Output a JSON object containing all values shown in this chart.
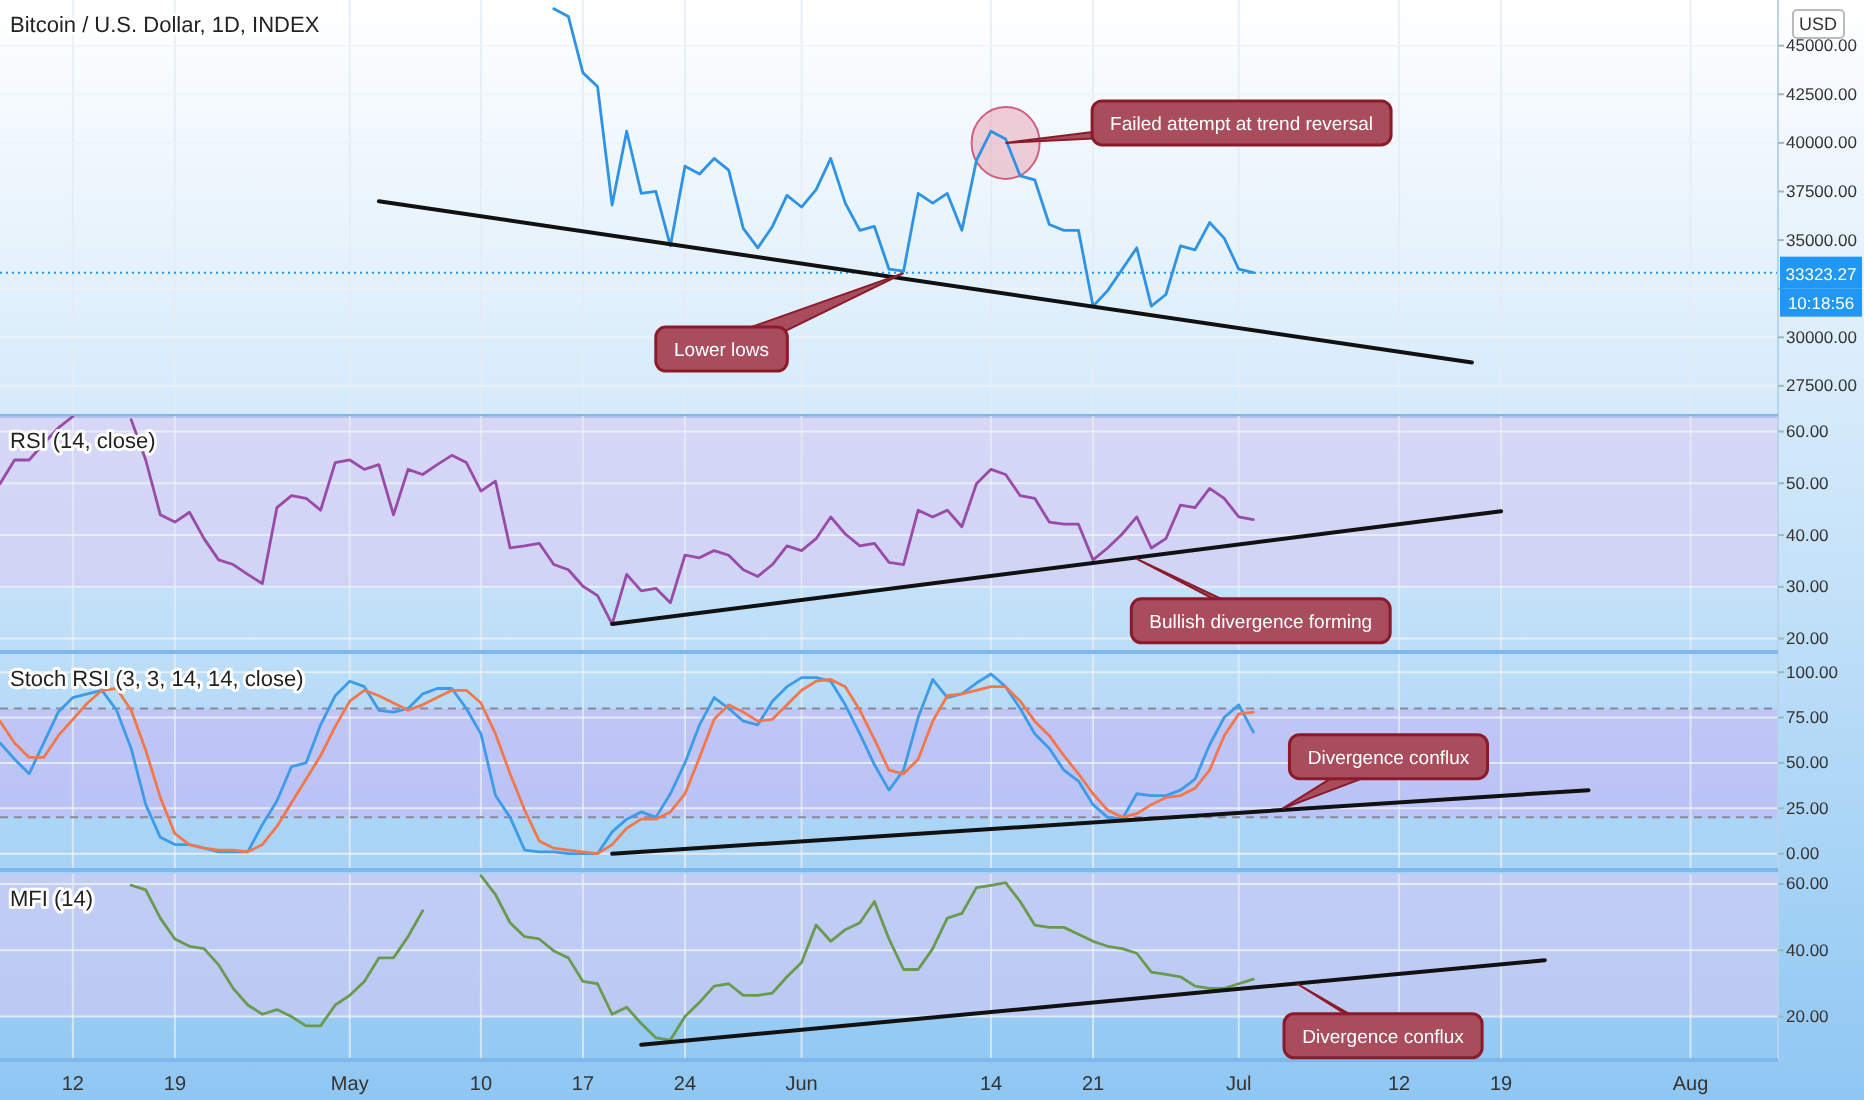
{
  "chart_data": [
    {
      "type": "line",
      "title": "Bitcoin / U.S. Dollar, 1D, INDEX",
      "ylabel": "USD",
      "grid": true,
      "tick_labels": "y",
      "xlim": [
        "--04-07",
        "--08-07"
      ],
      "ylim": [
        25950,
        47350
      ],
      "yticks": [
        {
          "value": 27500,
          "label": "27500.00"
        },
        {
          "value": 30000,
          "label": "30000.00"
        },
        {
          "value": 32500,
          "label": null
        },
        {
          "value": 35000,
          "label": "35000.00"
        },
        {
          "value": 37500,
          "label": "37500.00"
        },
        {
          "value": 40000,
          "label": "40000.00"
        },
        {
          "value": 42500,
          "label": "42500.00"
        },
        {
          "value": 45000,
          "label": "45000.00"
        }
      ],
      "x": [
        "--05-15",
        "--05-16",
        "--05-17",
        "--05-18",
        "--05-19",
        "--05-20",
        "--05-21",
        "--05-22",
        "--05-23",
        "--05-24",
        "--05-25",
        "--05-26",
        "--05-27",
        "--05-28",
        "--05-29",
        "--05-30",
        "--05-31",
        "--06-01",
        "--06-02",
        "--06-03",
        "--06-04",
        "--06-05",
        "--06-06",
        "--06-07",
        "--06-08",
        "--06-09",
        "--06-10",
        "--06-11",
        "--06-12",
        "--06-13",
        "--06-14",
        "--06-15",
        "--06-16",
        "--06-17",
        "--06-18",
        "--06-19",
        "--06-20",
        "--06-21",
        "--06-22",
        "--06-23",
        "--06-24",
        "--06-25",
        "--06-26",
        "--06-27",
        "--06-28",
        "--06-29",
        "--06-30",
        "--07-01",
        "--07-02"
      ],
      "series": [
        {
          "color": "#2e93e6",
          "values": [
            46900,
            46500,
            43600,
            42900,
            36800,
            40600,
            37400,
            37500,
            34700,
            38800,
            38400,
            39200,
            38600,
            35600,
            34600,
            35700,
            37300,
            36700,
            37600,
            39200,
            36900,
            35500,
            35700,
            33500,
            33400,
            37400,
            36900,
            37400,
            35500,
            39100,
            40600,
            40200,
            38300,
            38100,
            35800,
            35500,
            35500,
            31600,
            32400,
            33500,
            34600,
            31600,
            32200,
            34700,
            34500,
            35900,
            35100,
            33500,
            33323.27
          ]
        },
        {
          "color": "#111111",
          "x": [
            "--05-03",
            "--07-17"
          ],
          "values": [
            37000,
            28700
          ]
        }
      ],
      "ref_lines": [
        {
          "axis": "y",
          "value": 33323.27,
          "label": "33323.27",
          "color": "#2196f3",
          "line_style": "dotted"
        }
      ],
      "annotations": [
        {
          "text": "Lower lows",
          "x": "--06-08",
          "y": 33300
        },
        {
          "text": "Failed attempt at trend reversal",
          "x": "--06-15",
          "y": 40000
        },
        "10:18:56"
      ]
    },
    {
      "type": "line",
      "title": "RSI (14, close)",
      "grid": true,
      "tick_labels": "y",
      "xlim": [
        "--04-07",
        "--08-07"
      ],
      "ylim": [
        17.4,
        63
      ],
      "yticks": [
        {
          "value": 20,
          "label": "20.00"
        },
        {
          "value": 30,
          "label": "30.00"
        },
        {
          "value": 40,
          "label": "40.00"
        },
        {
          "value": 50,
          "label": "50.00"
        },
        {
          "value": 60,
          "label": "60.00"
        }
      ],
      "x": [
        "--04-07",
        "--04-08",
        "--04-09",
        "--04-10",
        "--04-11",
        "--04-12",
        "--04-13",
        "--04-14",
        "--04-15",
        "--04-16",
        "--04-17",
        "--04-18",
        "--04-19",
        "--04-20",
        "--04-21",
        "--04-22",
        "--04-23",
        "--04-24",
        "--04-25",
        "--04-26",
        "--04-27",
        "--04-28",
        "--04-29",
        "--04-30",
        "--05-01",
        "--05-02",
        "--05-03",
        "--05-04",
        "--05-05",
        "--05-06",
        "--05-07",
        "--05-08",
        "--05-09",
        "--05-10",
        "--05-11",
        "--05-12",
        "--05-13",
        "--05-14",
        "--05-15",
        "--05-16",
        "--05-17",
        "--05-18",
        "--05-19",
        "--05-20",
        "--05-21",
        "--05-22",
        "--05-23",
        "--05-24",
        "--05-25",
        "--05-26",
        "--05-27",
        "--05-28",
        "--05-29",
        "--05-30",
        "--05-31",
        "--06-01",
        "--06-02",
        "--06-03",
        "--06-04",
        "--06-05",
        "--06-06",
        "--06-07",
        "--06-08",
        "--06-09",
        "--06-10",
        "--06-11",
        "--06-12",
        "--06-13",
        "--06-14",
        "--06-15",
        "--06-16",
        "--06-17",
        "--06-18",
        "--06-19",
        "--06-20",
        "--06-21",
        "--06-22",
        "--06-23",
        "--06-24",
        "--06-25",
        "--06-26",
        "--06-27",
        "--06-28",
        "--06-29",
        "--06-30",
        "--07-01",
        "--07-02"
      ],
      "series": [
        {
          "color": "#9a4aa8",
          "values": [
            49.9,
            54.5,
            54.5,
            57.7,
            60.7,
            62.9,
            null,
            null,
            null,
            62.3,
            54.5,
            43.9,
            42.5,
            44.4,
            39.3,
            35.2,
            34.3,
            32.4,
            30.6,
            45.3,
            47.6,
            47.1,
            44.8,
            54.0,
            54.5,
            52.7,
            53.6,
            43.9,
            52.7,
            51.7,
            53.6,
            55.4,
            54.0,
            48.5,
            50.4,
            37.5,
            37.9,
            38.4,
            34.3,
            33.3,
            30.1,
            28.3,
            22.8,
            32.4,
            29.2,
            29.7,
            26.9,
            36.1,
            35.6,
            37.0,
            36.1,
            33.3,
            32.0,
            34.3,
            37.9,
            37.0,
            39.3,
            43.5,
            40.2,
            37.9,
            38.4,
            34.7,
            34.3,
            44.8,
            43.5,
            44.8,
            41.6,
            49.9,
            52.7,
            51.7,
            47.6,
            47.1,
            42.5,
            42.1,
            42.1,
            35.2,
            37.5,
            40.2,
            43.5,
            37.5,
            39.3,
            45.8,
            45.3,
            49.0,
            47.1,
            43.5,
            43.0
          ]
        },
        {
          "color": "#111111",
          "x": [
            "--05-19",
            "--07-19"
          ],
          "values": [
            22.8,
            44.6
          ]
        }
      ],
      "bands": [
        {
          "axis": "y",
          "from": 30,
          "to": 63,
          "color": "#d9c8f2"
        }
      ],
      "annotations": [
        {
          "text": "Bullish divergence forming",
          "x": "--06-24",
          "y": 35.4
        }
      ]
    },
    {
      "type": "line",
      "title": "Stoch RSI (3, 3, 14, 14, close)",
      "grid": true,
      "tick_labels": "y",
      "xlim": [
        "--04-07",
        "--08-07"
      ],
      "ylim": [
        -9,
        110
      ],
      "yticks": [
        {
          "value": 0,
          "label": "0.00"
        },
        {
          "value": 25,
          "label": "25.00"
        },
        {
          "value": 50,
          "label": "50.00"
        },
        {
          "value": 75,
          "label": "75.00"
        },
        {
          "value": 100,
          "label": "100.00"
        }
      ],
      "x": [
        "--04-07",
        "--04-08",
        "--04-09",
        "--04-10",
        "--04-11",
        "--04-12",
        "--04-13",
        "--04-14",
        "--04-15",
        "--04-16",
        "--04-17",
        "--04-18",
        "--04-19",
        "--04-20",
        "--04-21",
        "--04-22",
        "--04-23",
        "--04-24",
        "--04-25",
        "--04-26",
        "--04-27",
        "--04-28",
        "--04-29",
        "--04-30",
        "--05-01",
        "--05-02",
        "--05-03",
        "--05-04",
        "--05-05",
        "--05-06",
        "--05-07",
        "--05-08",
        "--05-09",
        "--05-10",
        "--05-11",
        "--05-12",
        "--05-13",
        "--05-14",
        "--05-15",
        "--05-16",
        "--05-17",
        "--05-18",
        "--05-19",
        "--05-20",
        "--05-21",
        "--05-22",
        "--05-23",
        "--05-24",
        "--05-25",
        "--05-26",
        "--05-27",
        "--05-28",
        "--05-29",
        "--05-30",
        "--05-31",
        "--06-01",
        "--06-02",
        "--06-03",
        "--06-04",
        "--06-05",
        "--06-06",
        "--06-07",
        "--06-08",
        "--06-09",
        "--06-10",
        "--06-11",
        "--06-12",
        "--06-13",
        "--06-14",
        "--06-15",
        "--06-16",
        "--06-17",
        "--06-18",
        "--06-19",
        "--06-20",
        "--06-21",
        "--06-22",
        "--06-23",
        "--06-24",
        "--06-25",
        "--06-26",
        "--06-27",
        "--06-28",
        "--06-29",
        "--06-30",
        "--07-01",
        "--07-02"
      ],
      "series": [
        {
          "color": "#3d9be9",
          "values": [
            61,
            52,
            44,
            61,
            78,
            86,
            88,
            90,
            79,
            58,
            27,
            9,
            5,
            5,
            3,
            1,
            1,
            1,
            16,
            29,
            48,
            50,
            71,
            87,
            95,
            92,
            79,
            78,
            80,
            88,
            91,
            91,
            80,
            66,
            32,
            20,
            2,
            1,
            1,
            0,
            0,
            0,
            12,
            19,
            23,
            20,
            33,
            50,
            71,
            86,
            80,
            73,
            71,
            84,
            92,
            97,
            97,
            95,
            82,
            66,
            49,
            35,
            46,
            75,
            96,
            86,
            88,
            94,
            99,
            92,
            80,
            66,
            58,
            46,
            40,
            27,
            20,
            19,
            33,
            32,
            32,
            35,
            41,
            60,
            75,
            82,
            67
          ]
        },
        {
          "color": "#f2784b",
          "values": [
            73,
            61,
            53,
            53,
            65,
            74,
            83,
            90,
            91,
            79,
            57,
            31,
            11,
            5,
            3,
            2,
            2,
            1,
            5,
            15,
            28,
            41,
            54,
            70,
            84,
            90,
            87,
            83,
            79,
            82,
            86,
            90,
            90,
            83,
            66,
            44,
            24,
            7,
            3,
            2,
            1,
            0,
            5,
            14,
            19,
            19,
            23,
            33,
            53,
            74,
            82,
            78,
            73,
            74,
            82,
            90,
            95,
            96,
            92,
            79,
            63,
            46,
            44,
            52,
            73,
            87,
            88,
            90,
            92,
            92,
            84,
            73,
            65,
            54,
            44,
            33,
            24,
            20,
            22,
            27,
            31,
            32,
            36,
            46,
            65,
            77,
            78
          ]
        },
        {
          "color": "#111111",
          "x": [
            "--05-19",
            "--07-25"
          ],
          "values": [
            0,
            35
          ]
        }
      ],
      "bands": [
        {
          "axis": "y",
          "from": 20,
          "to": 80,
          "color": "#c7b5f5"
        }
      ],
      "ref_lines": [
        {
          "axis": "y",
          "value": 80,
          "color": "#8a8a9a",
          "line_style": "dashed"
        },
        {
          "axis": "y",
          "value": 20,
          "color": "#8a8a9a",
          "line_style": "dashed"
        }
      ],
      "annotations": [
        {
          "text": "Divergence conflux",
          "x": "--07-04",
          "y": 24.8
        }
      ]
    },
    {
      "type": "line",
      "title": "MFI (14)",
      "grid": true,
      "xlim": [
        "--04-07",
        "--08-07"
      ],
      "ylim": [
        6.9,
        63
      ],
      "xticks": [
        {
          "value": "--04-12",
          "label": "12"
        },
        {
          "value": "--04-19",
          "label": "19"
        },
        {
          "value": "--05-01",
          "label": "May"
        },
        {
          "value": "--05-10",
          "label": "10"
        },
        {
          "value": "--05-17",
          "label": "17"
        },
        {
          "value": "--05-24",
          "label": "24"
        },
        {
          "value": "--06-01",
          "label": "Jun"
        },
        {
          "value": "--06-14",
          "label": "14"
        },
        {
          "value": "--06-21",
          "label": "21"
        },
        {
          "value": "--07-01",
          "label": "Jul"
        },
        {
          "value": "--07-12",
          "label": "12"
        },
        {
          "value": "--07-19",
          "label": "19"
        },
        {
          "value": "--08-01",
          "label": "Aug"
        }
      ],
      "yticks": [
        {
          "value": 20,
          "label": "20.00"
        },
        {
          "value": 40,
          "label": "40.00"
        },
        {
          "value": 60,
          "label": "60.00"
        }
      ],
      "x": [
        "--04-16",
        "--04-17",
        "--04-18",
        "--04-19",
        "--04-20",
        "--04-21",
        "--04-22",
        "--04-23",
        "--04-24",
        "--04-25",
        "--04-26",
        "--04-27",
        "--04-28",
        "--04-29",
        "--04-30",
        "--05-01",
        "--05-02",
        "--05-03",
        "--05-04",
        "--05-05",
        "--05-06",
        "--05-07",
        "--05-08",
        "--05-09",
        "--05-10",
        "--05-11",
        "--05-12",
        "--05-13",
        "--05-14",
        "--05-15",
        "--05-16",
        "--05-17",
        "--05-18",
        "--05-19",
        "--05-20",
        "--05-21",
        "--05-22",
        "--05-23",
        "--05-24",
        "--05-25",
        "--05-26",
        "--05-27",
        "--05-28",
        "--05-29",
        "--05-30",
        "--05-31",
        "--06-01",
        "--06-02",
        "--06-03",
        "--06-04",
        "--06-05",
        "--06-06",
        "--06-07",
        "--06-08",
        "--06-09",
        "--06-10",
        "--06-11",
        "--06-12",
        "--06-13",
        "--06-14",
        "--06-15",
        "--06-16",
        "--06-17",
        "--06-18",
        "--06-19",
        "--06-20",
        "--06-21",
        "--06-22",
        "--06-23",
        "--06-24",
        "--06-25",
        "--06-26",
        "--06-27",
        "--06-28",
        "--06-29",
        "--06-30",
        "--07-01",
        "--07-02"
      ],
      "series": [
        {
          "color": "#6a9a50",
          "values": [
            59.6,
            58.2,
            49.7,
            43.4,
            41.2,
            40.5,
            35.6,
            28.5,
            23.5,
            20.7,
            22.1,
            20.0,
            17.2,
            17.2,
            23.5,
            26.4,
            30.6,
            37.7,
            37.7,
            44.1,
            51.9,
            null,
            null,
            null,
            62.5,
            56.8,
            48.3,
            44.1,
            43.4,
            39.8,
            37.7,
            30.6,
            29.9,
            20.7,
            22.8,
            17.9,
            13.6,
            12.9,
            20.0,
            24.3,
            29.2,
            29.9,
            26.4,
            26.4,
            27.1,
            32.0,
            36.3,
            47.6,
            42.7,
            46.2,
            48.3,
            54.7,
            43.4,
            34.2,
            34.2,
            40.5,
            49.7,
            51.1,
            58.9,
            59.6,
            60.4,
            54.7,
            47.6,
            46.9,
            46.9,
            44.8,
            42.7,
            41.2,
            40.5,
            39.1,
            33.4,
            32.7,
            32.0,
            29.2,
            28.5,
            28.5,
            29.9,
            31.3
          ]
        },
        {
          "color": "#111111",
          "x": [
            "--05-21",
            "--07-22"
          ],
          "values": [
            11.5,
            37.0
          ]
        }
      ],
      "bands": [
        {
          "axis": "y",
          "from": 20,
          "to": 63,
          "color": "#d9c8f2"
        }
      ],
      "annotations": [
        {
          "text": "Divergence conflux",
          "x": "--07-05",
          "y": 29.9
        }
      ]
    }
  ]
}
